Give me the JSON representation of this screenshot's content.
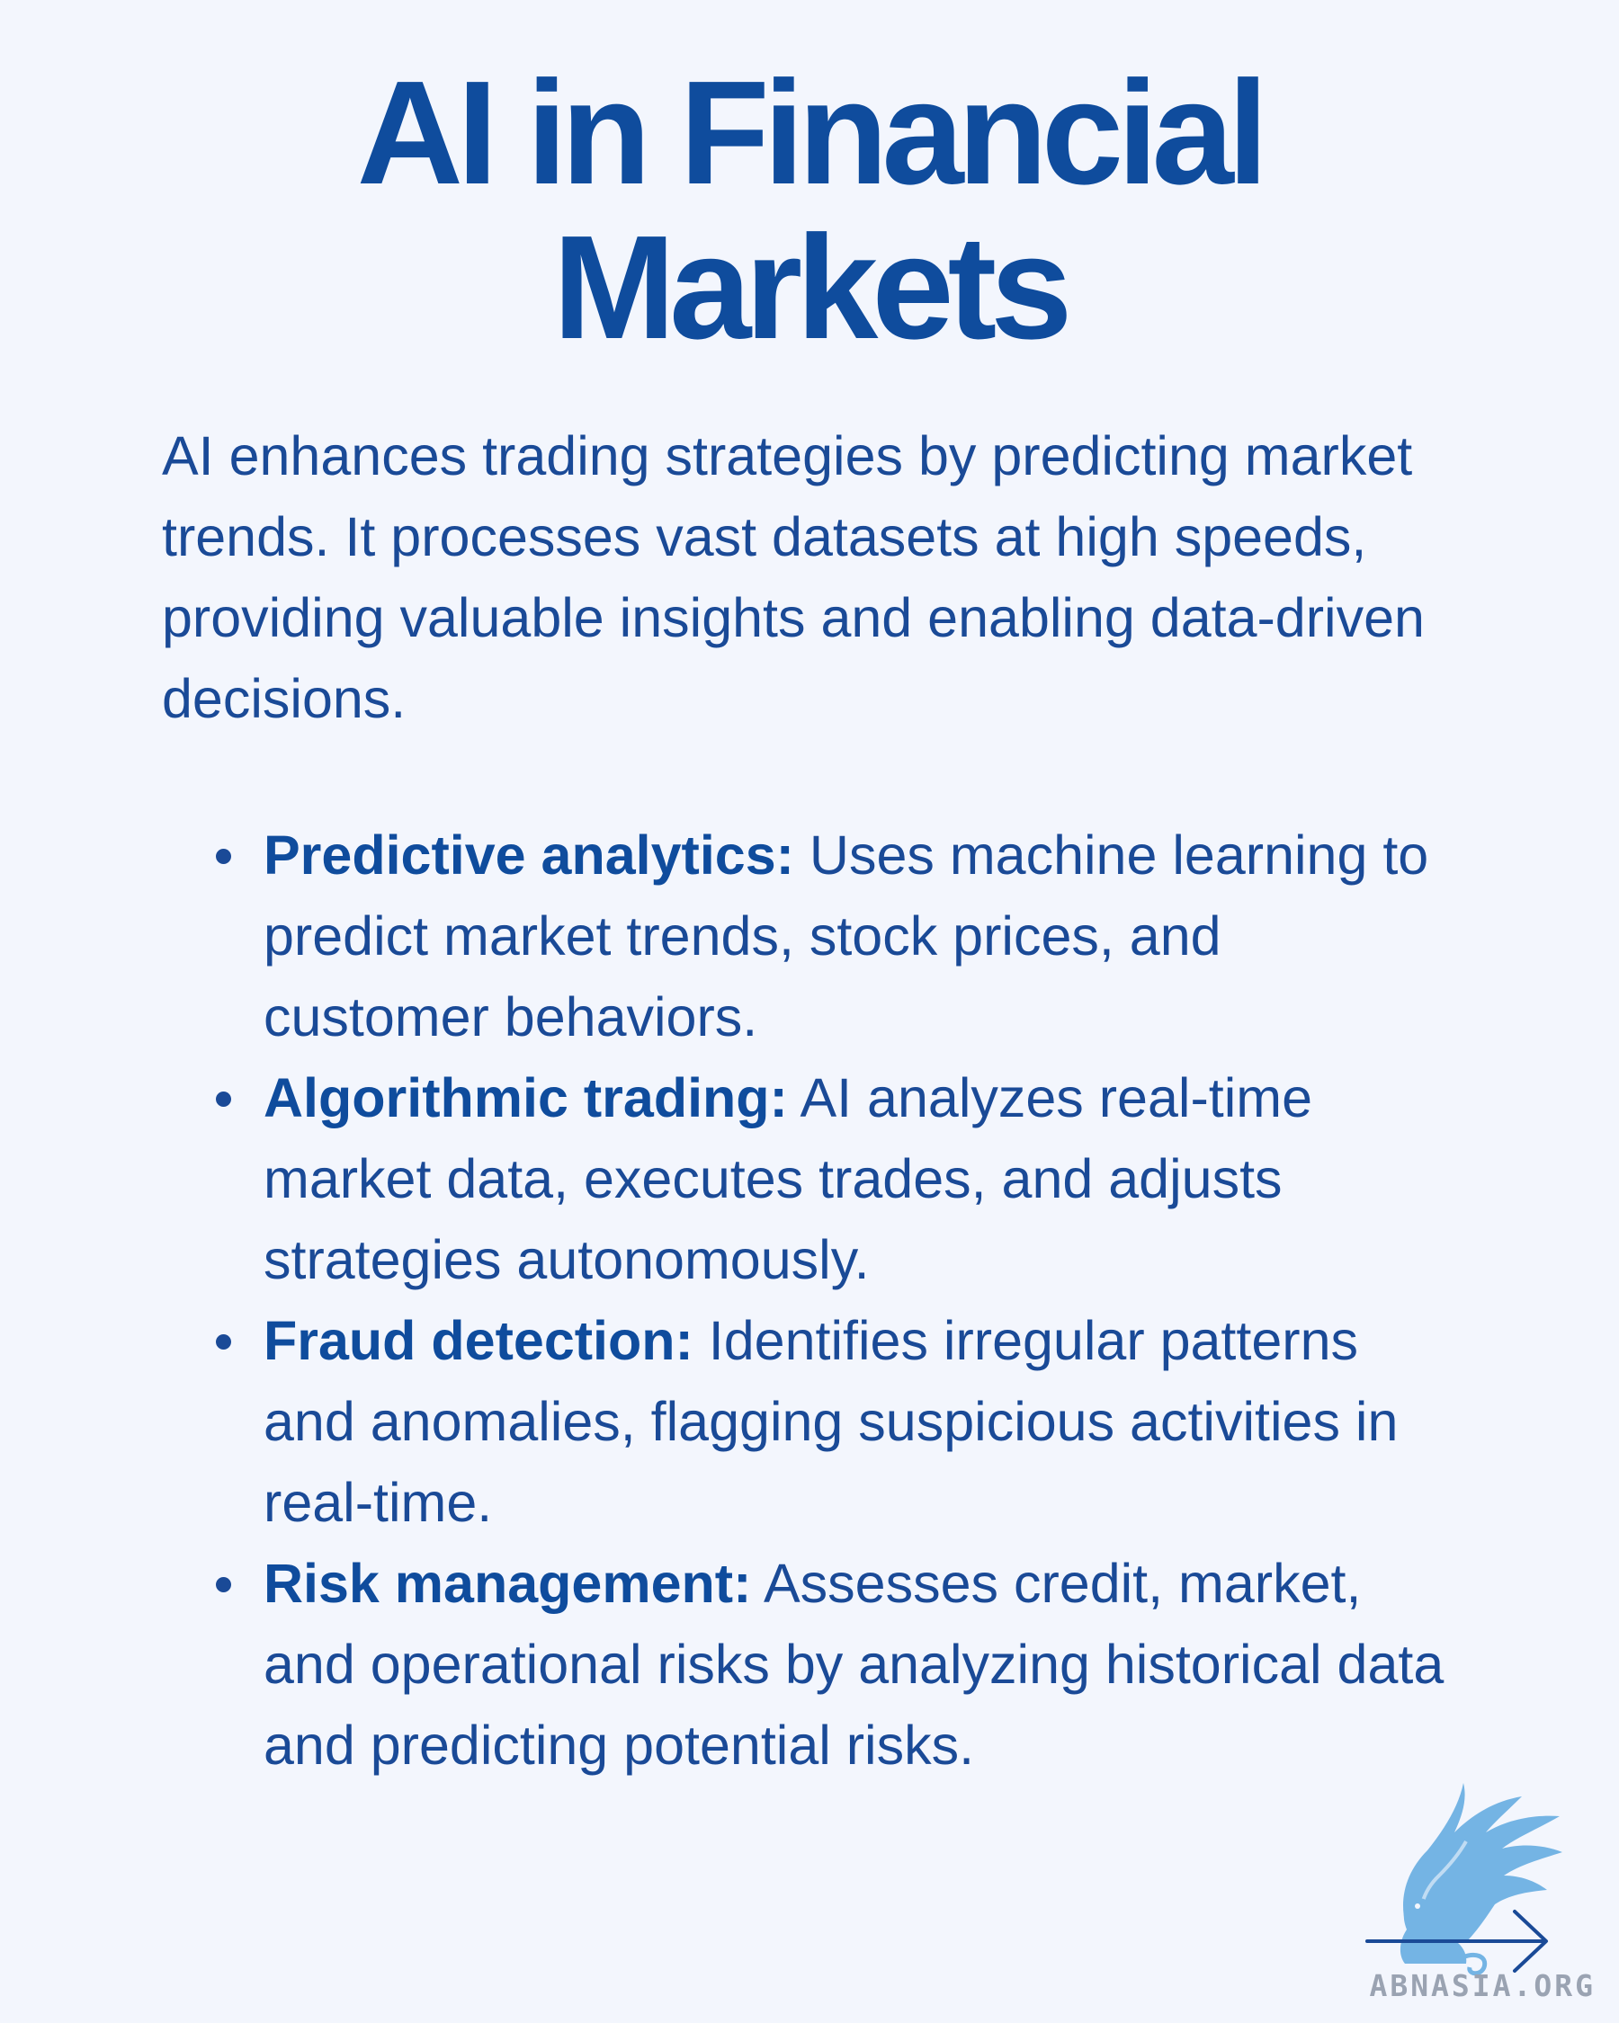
{
  "title_line1": "AI in Financial",
  "title_line2": "Markets",
  "intro": "AI enhances trading strategies by predicting market trends. It processes vast datasets at high speeds, providing valuable insights and enabling data-driven decisions.",
  "bullets": [
    {
      "term": "Predictive analytics:",
      "text": " Uses machine learning to predict market trends, stock prices, and customer behaviors."
    },
    {
      "term": "Algorithmic trading:",
      "text": " AI analyzes real-time market data, executes trades, and adjusts strategies autonomously."
    },
    {
      "term": "Fraud detection:",
      "text": " Identifies irregular patterns and anomalies, flagging suspicious activities in real-time."
    },
    {
      "term": "Risk management:",
      "text": " Assesses credit, market, and operational risks by analyzing historical data and predicting potential risks."
    }
  ],
  "logo": {
    "text": "ABNASIA.ORG",
    "icon": "griffin-icon",
    "arrow_icon": "arrow-right-icon",
    "colors": {
      "griffin": "#74b4e4",
      "arrow": "#1a4a97",
      "text": "#9aa3b2"
    }
  },
  "colors": {
    "background": "#f3f6fd",
    "title": "#0f4c9d",
    "body": "#1a4a97"
  }
}
